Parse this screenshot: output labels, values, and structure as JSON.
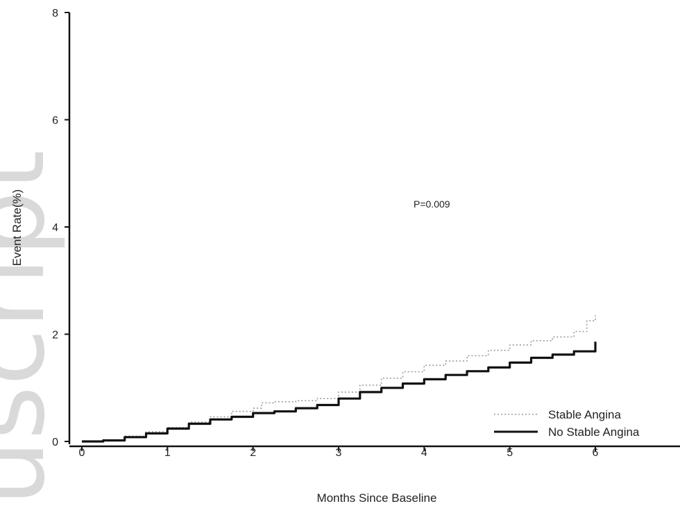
{
  "watermark": "uscript",
  "chart_data": {
    "type": "line",
    "xlabel": "Months Since Baseline",
    "ylabel": "Event Rate(%)",
    "xlim": [
      0,
      7
    ],
    "ylim": [
      0,
      8
    ],
    "xticks": [
      "0",
      "1",
      "2",
      "3",
      "4",
      "5",
      "6"
    ],
    "yticks": [
      "0",
      "2",
      "4",
      "6",
      "8"
    ],
    "grid": false,
    "legend_position": "bottom-right",
    "annotation": "P=0.009",
    "series": [
      {
        "name": "Stable Angina",
        "style": "dotted",
        "color": "#9a9a9a",
        "x": [
          0,
          0.25,
          0.5,
          0.75,
          1.0,
          1.25,
          1.5,
          1.75,
          2.0,
          2.1,
          2.25,
          2.5,
          2.75,
          3.0,
          3.25,
          3.5,
          3.75,
          4.0,
          4.25,
          4.5,
          4.75,
          5.0,
          5.25,
          5.5,
          5.75,
          5.9,
          6.0
        ],
        "y": [
          0,
          0.03,
          0.1,
          0.18,
          0.26,
          0.36,
          0.46,
          0.56,
          0.62,
          0.72,
          0.74,
          0.76,
          0.8,
          0.92,
          1.05,
          1.18,
          1.3,
          1.42,
          1.5,
          1.6,
          1.7,
          1.8,
          1.88,
          1.95,
          2.05,
          2.25,
          2.35
        ]
      },
      {
        "name": "No Stable Angina",
        "style": "solid",
        "color": "#111111",
        "x": [
          0,
          0.25,
          0.5,
          0.75,
          1.0,
          1.25,
          1.5,
          1.75,
          2.0,
          2.25,
          2.5,
          2.75,
          3.0,
          3.25,
          3.5,
          3.75,
          4.0,
          4.25,
          4.5,
          4.75,
          5.0,
          5.25,
          5.5,
          5.75,
          6.0
        ],
        "y": [
          0,
          0.02,
          0.08,
          0.15,
          0.24,
          0.33,
          0.41,
          0.46,
          0.53,
          0.56,
          0.62,
          0.68,
          0.8,
          0.92,
          1.0,
          1.08,
          1.16,
          1.24,
          1.31,
          1.38,
          1.47,
          1.56,
          1.62,
          1.68,
          1.86
        ]
      }
    ]
  }
}
